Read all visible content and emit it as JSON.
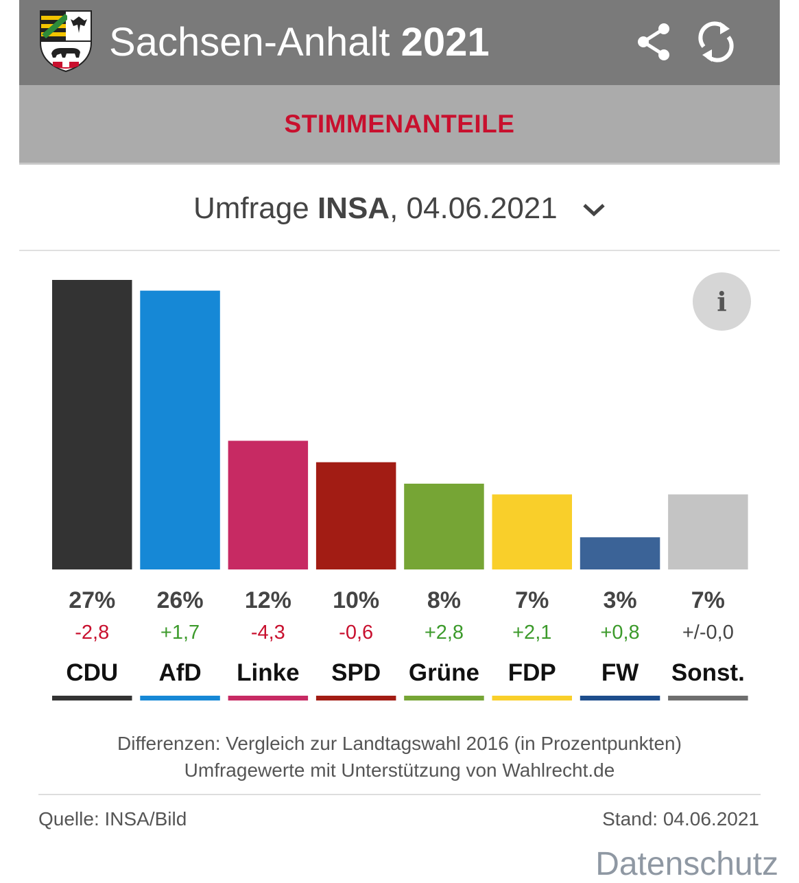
{
  "header": {
    "title_main": "Sachsen-Anhalt",
    "title_year": "2021",
    "background": "#7a7a7a",
    "share_icon": "share-icon",
    "refresh_icon": "refresh-icon"
  },
  "subbar": {
    "label": "STIMMENANTEILE",
    "label_color": "#c8102e"
  },
  "poll": {
    "prefix": "Umfrage",
    "institute": "INSA",
    "date": ", 04.06.2021"
  },
  "info_button": {
    "label": "i"
  },
  "chart_data": {
    "type": "bar",
    "categories": [
      "CDU",
      "AfD",
      "Linke",
      "SPD",
      "Grüne",
      "FDP",
      "FW",
      "Sonst."
    ],
    "values": [
      27,
      26,
      12,
      10,
      8,
      7,
      3,
      7
    ],
    "value_labels": [
      "27%",
      "26%",
      "12%",
      "10%",
      "8%",
      "7%",
      "3%",
      "7%"
    ],
    "differences": [
      "-2,8",
      "+1,7",
      "-4,3",
      "-0,6",
      "+2,8",
      "+2,1",
      "+0,8",
      "+/-0,0"
    ],
    "bar_colors": [
      "#333333",
      "#1688d6",
      "#c72a63",
      "#a21c14",
      "#76a535",
      "#f9cf2a",
      "#3b6397",
      "#c4c4c4"
    ],
    "underline_colors": [
      "#333333",
      "#1688d6",
      "#c72a63",
      "#a21c14",
      "#76a535",
      "#f9cf2a",
      "#1d4d8c",
      "#6e6e6e"
    ],
    "diff_colors": {
      "negative": "#c8102e",
      "positive": "#3c9a2b",
      "neutral": "#444444"
    },
    "title": "",
    "xlabel": "",
    "ylabel": "",
    "ylim": [
      0,
      27
    ],
    "grid": false
  },
  "footer": {
    "note_line1": "Differenzen: Vergleich zur Landtagswahl 2016 (in Prozentpunkten)",
    "note_line2": "Umfragewerte mit Unterstützung von Wahlrecht.de",
    "source": "Quelle: INSA/Bild",
    "stand": "Stand: 04.06.2021",
    "privacy_link": "Datenschutz"
  }
}
